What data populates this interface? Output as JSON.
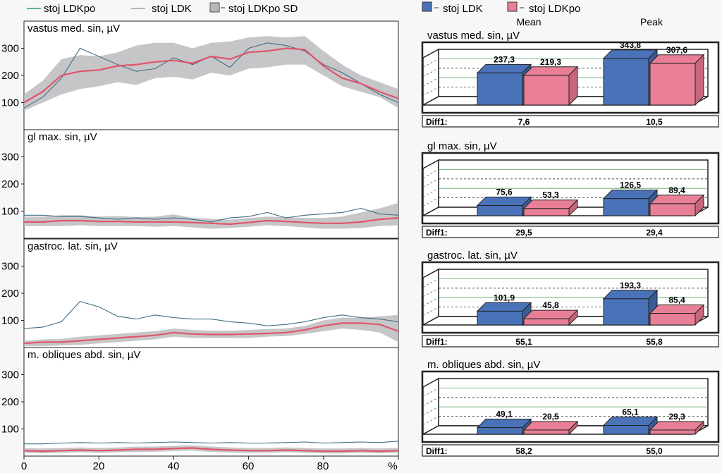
{
  "legend_top": {
    "item1": "stoj LDKpo",
    "item2": "stoj LDK",
    "item3": "stoj LDKpo SD"
  },
  "bar_legend": {
    "item1": "stoj LDK",
    "item2": "stoj LDKpo",
    "col_mean": "Mean",
    "col_peak": "Peak"
  },
  "colors": {
    "ldk_line": "#3f6e86",
    "ldkpo_line": "#e0556b",
    "sd_band": "#b8b8bc",
    "bar_ldk": "#4a72b8",
    "bar_ldkpo": "#e87f96",
    "grid_green": "#58a860",
    "legend_green": "#2e9e62"
  },
  "x_axis": {
    "ticks": [
      "0",
      "20",
      "40",
      "60",
      "80"
    ],
    "unit": "%"
  },
  "chart_data": [
    {
      "type": "line",
      "title": "vastus med. sin, µV",
      "xlabel": "%",
      "ylabel": "µV",
      "xlim": [
        0,
        100
      ],
      "ylim": [
        0,
        400
      ],
      "yticks": [
        100,
        200,
        300
      ],
      "x": [
        0,
        5,
        10,
        15,
        20,
        25,
        30,
        35,
        40,
        45,
        50,
        55,
        60,
        65,
        70,
        75,
        80,
        85,
        90,
        95,
        100
      ],
      "series": [
        {
          "name": "stoj LDK",
          "values": [
            80,
            120,
            190,
            300,
            270,
            240,
            215,
            225,
            265,
            240,
            270,
            230,
            300,
            320,
            310,
            290,
            240,
            210,
            170,
            130,
            100
          ]
        },
        {
          "name": "stoj LDKpo",
          "values": [
            100,
            140,
            200,
            215,
            220,
            235,
            240,
            250,
            255,
            245,
            270,
            260,
            285,
            290,
            300,
            295,
            235,
            190,
            170,
            140,
            115
          ]
        },
        {
          "name": "stoj LDKpo SD",
          "lower": [
            70,
            100,
            130,
            150,
            160,
            175,
            165,
            190,
            195,
            185,
            210,
            200,
            225,
            230,
            240,
            240,
            200,
            160,
            140,
            120,
            80
          ],
          "upper": [
            130,
            180,
            260,
            275,
            270,
            285,
            310,
            320,
            320,
            300,
            320,
            325,
            340,
            345,
            340,
            345,
            290,
            240,
            200,
            175,
            150
          ]
        }
      ]
    },
    {
      "type": "line",
      "title": "gl max. sin, µV",
      "xlabel": "%",
      "ylabel": "µV",
      "xlim": [
        0,
        100
      ],
      "ylim": [
        0,
        400
      ],
      "yticks": [
        100,
        200,
        300
      ],
      "x": [
        0,
        5,
        10,
        15,
        20,
        25,
        30,
        35,
        40,
        45,
        50,
        55,
        60,
        65,
        70,
        75,
        80,
        85,
        90,
        95,
        100
      ],
      "series": [
        {
          "name": "stoj LDK",
          "values": [
            85,
            85,
            80,
            80,
            75,
            70,
            75,
            70,
            75,
            70,
            60,
            75,
            80,
            95,
            75,
            85,
            90,
            95,
            110,
            90,
            85
          ]
        },
        {
          "name": "stoj LDKpo",
          "values": [
            60,
            60,
            65,
            65,
            62,
            62,
            60,
            60,
            60,
            58,
            55,
            52,
            58,
            65,
            62,
            58,
            55,
            55,
            60,
            70,
            75
          ]
        },
        {
          "name": "stoj LDKpo SD",
          "lower": [
            45,
            45,
            45,
            48,
            45,
            45,
            45,
            42,
            45,
            40,
            35,
            38,
            42,
            48,
            45,
            40,
            35,
            35,
            38,
            45,
            48
          ],
          "upper": [
            80,
            80,
            85,
            85,
            80,
            82,
            78,
            80,
            88,
            75,
            72,
            68,
            75,
            80,
            78,
            75,
            75,
            80,
            95,
            110,
            130
          ]
        }
      ]
    },
    {
      "type": "line",
      "title": "gastroc. lat. sin, µV",
      "xlabel": "%",
      "ylabel": "µV",
      "xlim": [
        0,
        100
      ],
      "ylim": [
        0,
        400
      ],
      "yticks": [
        100,
        200,
        300
      ],
      "x": [
        0,
        5,
        10,
        15,
        20,
        25,
        30,
        35,
        40,
        45,
        50,
        55,
        60,
        65,
        70,
        75,
        80,
        85,
        90,
        95,
        100
      ],
      "series": [
        {
          "name": "stoj LDK",
          "values": [
            70,
            75,
            95,
            170,
            150,
            115,
            105,
            120,
            110,
            105,
            105,
            95,
            90,
            80,
            85,
            95,
            110,
            120,
            110,
            105,
            95
          ]
        },
        {
          "name": "stoj LDKpo",
          "values": [
            15,
            20,
            20,
            25,
            30,
            35,
            40,
            45,
            55,
            50,
            48,
            48,
            50,
            52,
            55,
            65,
            80,
            90,
            90,
            85,
            60
          ]
        },
        {
          "name": "stoj LDKpo SD",
          "lower": [
            5,
            5,
            8,
            10,
            15,
            20,
            25,
            30,
            40,
            35,
            35,
            35,
            35,
            40,
            42,
            50,
            60,
            70,
            65,
            55,
            20
          ],
          "upper": [
            25,
            30,
            32,
            40,
            45,
            50,
            55,
            60,
            70,
            65,
            62,
            62,
            65,
            68,
            70,
            80,
            100,
            110,
            110,
            115,
            120
          ]
        }
      ]
    },
    {
      "type": "line",
      "title": "m. obliques abd. sin, µV",
      "xlabel": "%",
      "ylabel": "µV",
      "xlim": [
        0,
        100
      ],
      "ylim": [
        0,
        400
      ],
      "yticks": [
        100,
        200,
        300
      ],
      "x": [
        0,
        5,
        10,
        15,
        20,
        25,
        30,
        35,
        40,
        45,
        50,
        55,
        60,
        65,
        70,
        75,
        80,
        85,
        90,
        95,
        100
      ],
      "series": [
        {
          "name": "stoj LDK",
          "values": [
            45,
            45,
            48,
            50,
            48,
            50,
            48,
            50,
            52,
            50,
            48,
            50,
            48,
            48,
            50,
            52,
            48,
            50,
            52,
            50,
            55
          ]
        },
        {
          "name": "stoj LDKpo",
          "values": [
            20,
            18,
            20,
            22,
            20,
            22,
            25,
            25,
            28,
            30,
            25,
            22,
            20,
            20,
            22,
            20,
            18,
            18,
            20,
            18,
            20
          ]
        },
        {
          "name": "stoj LDKpo SD",
          "lower": [
            12,
            10,
            12,
            14,
            12,
            14,
            15,
            16,
            18,
            20,
            15,
            13,
            12,
            12,
            14,
            12,
            10,
            10,
            12,
            10,
            12
          ],
          "upper": [
            30,
            28,
            30,
            32,
            30,
            32,
            35,
            35,
            38,
            40,
            35,
            32,
            30,
            30,
            32,
            30,
            28,
            28,
            30,
            28,
            30
          ]
        }
      ]
    },
    {
      "type": "bar",
      "title": "vastus med. sin, µV",
      "categories": [
        "Mean",
        "Peak"
      ],
      "series": [
        {
          "name": "stoj LDK",
          "values": [
            237.3,
            343.8
          ],
          "labels": [
            "237,3",
            "343,8"
          ]
        },
        {
          "name": "stoj LDKpo",
          "values": [
            219.3,
            307.6
          ],
          "labels": [
            "219,3",
            "307,6"
          ]
        }
      ],
      "ylim": [
        0,
        400
      ],
      "diff_label": "Diff1:",
      "diff_values": [
        "7,6",
        "10,5"
      ]
    },
    {
      "type": "bar",
      "title": "gl max. sin, µV",
      "categories": [
        "Mean",
        "Peak"
      ],
      "series": [
        {
          "name": "stoj LDK",
          "values": [
            75.6,
            126.5
          ],
          "labels": [
            "75,6",
            "126,5"
          ]
        },
        {
          "name": "stoj LDKpo",
          "values": [
            53.3,
            89.4
          ],
          "labels": [
            "53,3",
            "89,4"
          ]
        }
      ],
      "ylim": [
        0,
        400
      ],
      "diff_label": "Diff1:",
      "diff_values": [
        "29,5",
        "29,4"
      ]
    },
    {
      "type": "bar",
      "title": "gastroc. lat. sin, µV",
      "categories": [
        "Mean",
        "Peak"
      ],
      "series": [
        {
          "name": "stoj LDK",
          "values": [
            101.9,
            193.3
          ],
          "labels": [
            "101,9",
            "193,3"
          ]
        },
        {
          "name": "stoj LDKpo",
          "values": [
            45.8,
            85.4
          ],
          "labels": [
            "45,8",
            "85,4"
          ]
        }
      ],
      "ylim": [
        0,
        400
      ],
      "diff_label": "Diff1:",
      "diff_values": [
        "55,1",
        "55,8"
      ]
    },
    {
      "type": "bar",
      "title": "m. obliques abd. sin, µV",
      "categories": [
        "Mean",
        "Peak"
      ],
      "series": [
        {
          "name": "stoj LDK",
          "values": [
            49.1,
            65.1
          ],
          "labels": [
            "49,1",
            "65,1"
          ]
        },
        {
          "name": "stoj LDKpo",
          "values": [
            20.5,
            29.3
          ],
          "labels": [
            "20,5",
            "29,3"
          ]
        }
      ],
      "ylim": [
        0,
        400
      ],
      "diff_label": "Diff1:",
      "diff_values": [
        "58,2",
        "55,0"
      ]
    }
  ]
}
